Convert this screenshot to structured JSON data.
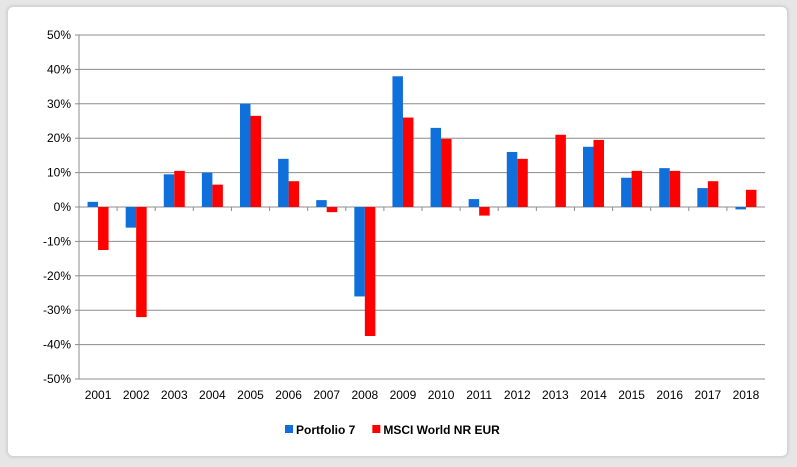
{
  "chart_data": {
    "type": "bar",
    "categories": [
      "2001",
      "2002",
      "2003",
      "2004",
      "2005",
      "2006",
      "2007",
      "2008",
      "2009",
      "2010",
      "2011",
      "2012",
      "2013",
      "2014",
      "2015",
      "2016",
      "2017",
      "2018"
    ],
    "series": [
      {
        "name": "Portfolio 7",
        "color": "#0f6fdb",
        "values": [
          1.5,
          -6,
          9.5,
          10,
          30,
          14,
          2,
          -26,
          38,
          23,
          2.3,
          16,
          0,
          17.5,
          8.5,
          11.3,
          5.5,
          -0.7
        ]
      },
      {
        "name": "MSCI World NR EUR",
        "color": "#ff0000",
        "values": [
          -12.5,
          -32,
          10.5,
          6.5,
          26.5,
          7.5,
          -1.5,
          -37.5,
          26,
          19.8,
          -2.5,
          14,
          21,
          19.5,
          10.5,
          10.5,
          7.5,
          5
        ]
      }
    ],
    "ylim": [
      -50,
      50
    ],
    "yticks": [
      "50%",
      "40%",
      "30%",
      "20%",
      "10%",
      "0%",
      "-10%",
      "-20%",
      "-30%",
      "-40%",
      "-50%"
    ],
    "grid": true,
    "legend": "bottom"
  }
}
